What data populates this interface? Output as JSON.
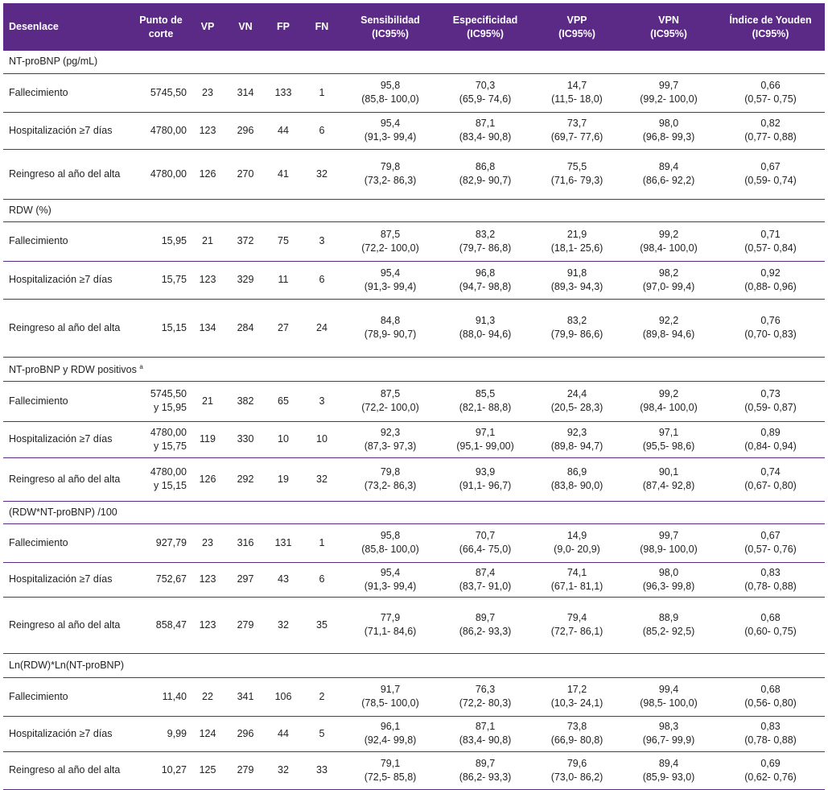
{
  "header": {
    "desenlace": "Desenlace",
    "punto_corte_1": "Punto de",
    "punto_corte_2": "corte",
    "vp": "VP",
    "vn": "VN",
    "fp": "FP",
    "fn": "FN",
    "sens_1": "Sensibilidad",
    "sens_2": "(IC95%)",
    "espec_1": "Especificidad",
    "espec_2": "(IC95%)",
    "vpp_1": "VPP",
    "vpp_2": "(IC95%)",
    "vpn_1": "VPN",
    "vpn_2": "(IC95%)",
    "youden_1": "Índice de Youden",
    "youden_2": "(IC95%)"
  },
  "sections": [
    {
      "title": "NT-proBNP (pg/mL)",
      "title_sup": "",
      "rows": [
        {
          "outcome": "Fallecimiento",
          "cut1": "5745,50",
          "cut2": "",
          "vp": "23",
          "vn": "314",
          "fp": "133",
          "fn": "1",
          "sens": "95,8",
          "sens_ci": "(85,8- 100,0)",
          "esp": "70,3",
          "esp_ci": "(65,9- 74,6)",
          "vpp": "14,7",
          "vpp_ci": "(11,5- 18,0)",
          "vpn": "99,7",
          "vpn_ci": "(99,2- 100,0)",
          "you": "0,66",
          "you_ci": "(0,57- 0,75)"
        },
        {
          "outcome": "Hospitalización ≥7 días",
          "cut1": "4780,00",
          "cut2": "",
          "vp": "123",
          "vn": "296",
          "fp": "44",
          "fn": "6",
          "sens": "95,4",
          "sens_ci": "(91,3- 99,4)",
          "esp": "87,1",
          "esp_ci": "(83,4- 90,8)",
          "vpp": "73,7",
          "vpp_ci": "(69,7- 77,6)",
          "vpn": "98,0",
          "vpn_ci": "(96,8- 99,3)",
          "you": "0,82",
          "you_ci": "(0,77- 0,88)"
        },
        {
          "outcome": "Reingreso al año del alta",
          "cut1": "4780,00",
          "cut2": "",
          "vp": "126",
          "vn": "270",
          "fp": "41",
          "fn": "32",
          "sens": "79,8",
          "sens_ci": "(73,2- 86,3)",
          "esp": "86,8",
          "esp_ci": "(82,9- 90,7)",
          "vpp": "75,5",
          "vpp_ci": "(71,6- 79,3)",
          "vpn": "89,4",
          "vpn_ci": "(86,6- 92,2)",
          "you": "0,67",
          "you_ci": "(0,59- 0,74)"
        }
      ]
    },
    {
      "title": "RDW (%)",
      "title_sup": "",
      "rows": [
        {
          "outcome": "Fallecimiento",
          "cut1": "15,95",
          "cut2": "",
          "vp": "21",
          "vn": "372",
          "fp": "75",
          "fn": "3",
          "sens": "87,5",
          "sens_ci": "(72,2- 100,0)",
          "esp": "83,2",
          "esp_ci": "(79,7- 86,8)",
          "vpp": "21,9",
          "vpp_ci": "(18,1- 25,6)",
          "vpn": "99,2",
          "vpn_ci": "(98,4- 100,0)",
          "you": "0,71",
          "you_ci": "(0,57- 0,84)"
        },
        {
          "outcome": "Hospitalización ≥7 días",
          "cut1": "15,75",
          "cut2": "",
          "vp": "123",
          "vn": "329",
          "fp": "11",
          "fn": "6",
          "sens": "95,4",
          "sens_ci": "(91,3- 99,4)",
          "esp": "96,8",
          "esp_ci": "(94,7- 98,8)",
          "vpp": "91,8",
          "vpp_ci": "(89,3- 94,3)",
          "vpn": "98,2",
          "vpn_ci": "(97,0- 99,4)",
          "you": "0,92",
          "you_ci": "(0,88- 0,96)"
        },
        {
          "outcome": "Reingreso al año del alta",
          "cut1": "15,15",
          "cut2": "",
          "vp": "134",
          "vn": "284",
          "fp": "27",
          "fn": "24",
          "sens": "84,8",
          "sens_ci": "(78,9- 90,7)",
          "esp": "91,3",
          "esp_ci": "(88,0- 94,6)",
          "vpp": "83,2",
          "vpp_ci": "(79,9- 86,6)",
          "vpn": "92,2",
          "vpn_ci": "(89,8- 94,6)",
          "you": "0,76",
          "you_ci": "(0,70- 0,83)"
        }
      ]
    },
    {
      "title": "NT-proBNP y RDW positivos",
      "title_sup": "a",
      "rows": [
        {
          "outcome": "Fallecimiento",
          "cut1": "5745,50",
          "cut2": "y 15,95",
          "vp": "21",
          "vn": "382",
          "fp": "65",
          "fn": "3",
          "sens": "87,5",
          "sens_ci": "(72,2- 100,0)",
          "esp": "85,5",
          "esp_ci": "(82,1- 88,8)",
          "vpp": "24,4",
          "vpp_ci": "(20,5- 28,3)",
          "vpn": "99,2",
          "vpn_ci": "(98,4- 100,0)",
          "you": "0,73",
          "you_ci": "(0,59- 0,87)"
        },
        {
          "outcome": "Hospitalización ≥7 días",
          "cut1": "4780,00",
          "cut2": "y 15,75",
          "vp": "119",
          "vn": "330",
          "fp": "10",
          "fn": "10",
          "sens": "92,3",
          "sens_ci": "(87,3- 97,3)",
          "esp": "97,1",
          "esp_ci": "(95,1- 99,00)",
          "vpp": "92,3",
          "vpp_ci": "(89,8- 94,7)",
          "vpn": "97,1",
          "vpn_ci": "(95,5- 98,6)",
          "you": "0,89",
          "you_ci": "(0,84- 0,94)"
        },
        {
          "outcome": "Reingreso al año del alta",
          "cut1": "4780,00",
          "cut2": "y 15,15",
          "vp": "126",
          "vn": "292",
          "fp": "19",
          "fn": "32",
          "sens": "79,8",
          "sens_ci": "(73,2- 86,3)",
          "esp": "93,9",
          "esp_ci": "(91,1- 96,7)",
          "vpp": "86,9",
          "vpp_ci": "(83,8- 90,0)",
          "vpn": "90,1",
          "vpn_ci": "(87,4- 92,8)",
          "you": "0,74",
          "you_ci": "(0,67- 0,80)"
        }
      ]
    },
    {
      "title": "(RDW*NT-proBNP) /100",
      "title_sup": "",
      "rows": [
        {
          "outcome": "Fallecimiento",
          "cut1": "927,79",
          "cut2": "",
          "vp": "23",
          "vn": "316",
          "fp": "131",
          "fn": "1",
          "sens": "95,8",
          "sens_ci": "(85,8- 100,0)",
          "esp": "70,7",
          "esp_ci": "(66,4- 75,0)",
          "vpp": "14,9",
          "vpp_ci": "(9,0- 20,9)",
          "vpn": "99,7",
          "vpn_ci": "(98,9- 100,0)",
          "you": "0,67",
          "you_ci": "(0,57- 0,76)"
        },
        {
          "outcome": "Hospitalización ≥7 días",
          "cut1": "752,67",
          "cut2": "",
          "vp": "123",
          "vn": "297",
          "fp": "43",
          "fn": "6",
          "sens": "95,4",
          "sens_ci": "(91,3- 99,4)",
          "esp": "87,4",
          "esp_ci": "(83,7- 91,0)",
          "vpp": "74,1",
          "vpp_ci": "(67,1- 81,1)",
          "vpn": "98,0",
          "vpn_ci": "(96,3- 99,8)",
          "you": "0,83",
          "you_ci": "(0,78- 0,88)"
        },
        {
          "outcome": "Reingreso al año del alta",
          "cut1": "858,47",
          "cut2": "",
          "vp": "123",
          "vn": "279",
          "fp": "32",
          "fn": "35",
          "sens": "77,9",
          "sens_ci": "(71,1- 84,6)",
          "esp": "89,7",
          "esp_ci": "(86,2- 93,3)",
          "vpp": "79,4",
          "vpp_ci": "(72,7- 86,1)",
          "vpn": "88,9",
          "vpn_ci": "(85,2- 92,5)",
          "you": "0,68",
          "you_ci": "(0,60- 0,75)"
        }
      ]
    },
    {
      "title": "Ln(RDW)*Ln(NT-proBNP)",
      "title_sup": "",
      "rows": [
        {
          "outcome": "Fallecimiento",
          "cut1": "11,40",
          "cut2": "",
          "vp": "22",
          "vn": "341",
          "fp": "106",
          "fn": "2",
          "sens": "91,7",
          "sens_ci": "(78,5- 100,0)",
          "esp": "76,3",
          "esp_ci": "(72,2- 80,3)",
          "vpp": "17,2",
          "vpp_ci": "(10,3- 24,1)",
          "vpn": "99,4",
          "vpn_ci": "(98,5- 100,0)",
          "you": "0,68",
          "you_ci": "(0,56- 0,80)"
        },
        {
          "outcome": "Hospitalización ≥7 días",
          "cut1": "9,99",
          "cut2": "",
          "vp": "124",
          "vn": "296",
          "fp": "44",
          "fn": "5",
          "sens": "96,1",
          "sens_ci": "(92,4- 99,8)",
          "esp": "87,1",
          "esp_ci": "(83,4- 90,8)",
          "vpp": "73,8",
          "vpp_ci": "(66,9- 80,8)",
          "vpn": "98,3",
          "vpn_ci": "(96,7- 99,9)",
          "you": "0,83",
          "you_ci": "(0,78- 0,88)"
        },
        {
          "outcome": "Reingreso al año del alta",
          "cut1": "10,27",
          "cut2": "",
          "vp": "125",
          "vn": "279",
          "fp": "32",
          "fn": "33",
          "sens": "79,1",
          "sens_ci": "(72,5- 85,8)",
          "esp": "89,7",
          "esp_ci": "(86,2- 93,3)",
          "vpp": "79,6",
          "vpp_ci": "(73,0- 86,2)",
          "vpn": "89,4",
          "vpn_ci": "(85,9- 93,0)",
          "you": "0,69",
          "you_ci": "(0,62- 0,76)"
        }
      ]
    }
  ]
}
